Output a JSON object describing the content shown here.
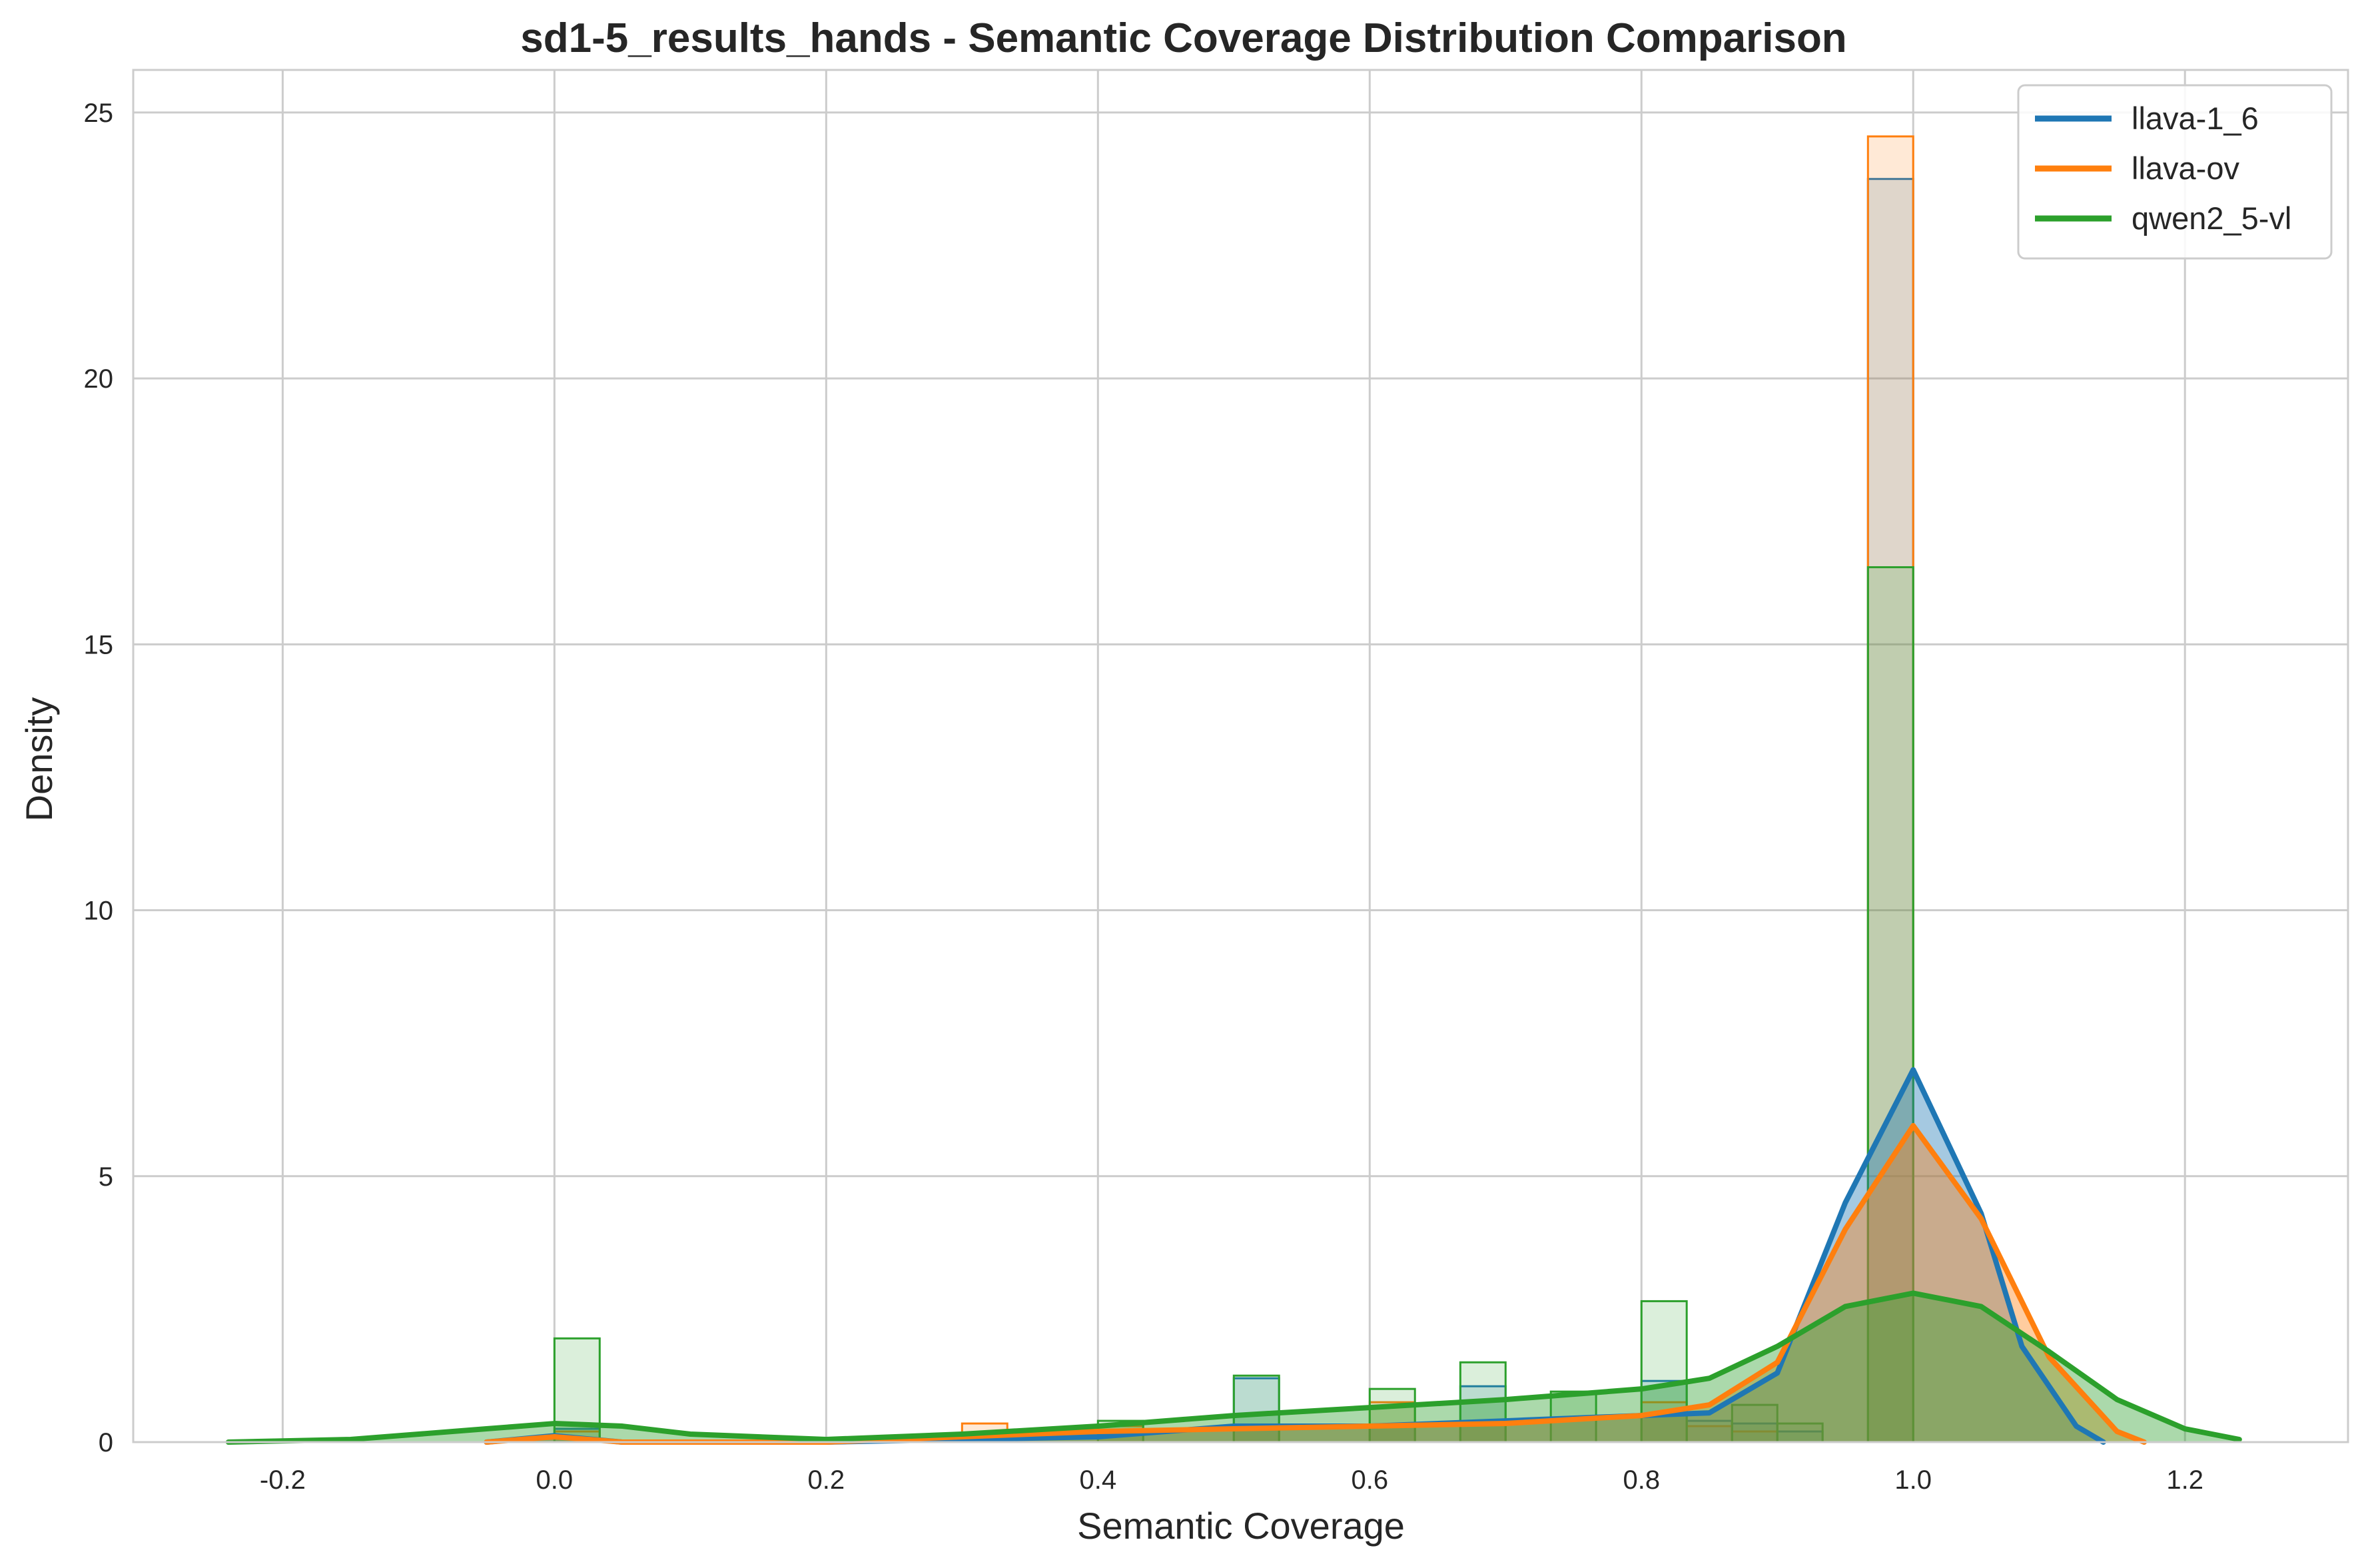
{
  "chart_data": {
    "type": "area",
    "title": "sd1-5_results_hands - Semantic Coverage Distribution Comparison",
    "xlabel": "Semantic Coverage",
    "ylabel": "Density",
    "xlim": [
      -0.31,
      1.32
    ],
    "ylim": [
      0,
      25.8
    ],
    "xticks": [
      -0.2,
      0.0,
      0.2,
      0.4,
      0.6,
      0.8,
      1.0,
      1.2
    ],
    "xtick_labels": [
      "-0.2",
      "0.0",
      "0.2",
      "0.4",
      "0.6",
      "0.8",
      "1.0",
      "1.2"
    ],
    "yticks": [
      0,
      5,
      10,
      15,
      20,
      25
    ],
    "ytick_labels": [
      "0",
      "5",
      "10",
      "15",
      "20",
      "25"
    ],
    "grid": true,
    "legend_position": "top-right",
    "bin_width": 0.0333,
    "series": [
      {
        "name": "llava-1_6",
        "color": "#1f77b4",
        "hist": [
          {
            "x": 0.0,
            "y": 0.25
          },
          {
            "x": 0.5,
            "y": 1.2
          },
          {
            "x": 0.6,
            "y": 0.3
          },
          {
            "x": 0.6667,
            "y": 1.05
          },
          {
            "x": 0.8,
            "y": 1.15
          },
          {
            "x": 0.8333,
            "y": 0.4
          },
          {
            "x": 0.8667,
            "y": 0.35
          },
          {
            "x": 0.9,
            "y": 0.2
          },
          {
            "x": 0.9667,
            "y": 23.75
          }
        ],
        "kde": [
          [
            -0.05,
            0.0
          ],
          [
            0.0,
            0.12
          ],
          [
            0.05,
            0.0
          ],
          [
            0.2,
            0.0
          ],
          [
            0.4,
            0.1
          ],
          [
            0.5,
            0.3
          ],
          [
            0.6,
            0.3
          ],
          [
            0.7,
            0.4
          ],
          [
            0.8,
            0.5
          ],
          [
            0.85,
            0.55
          ],
          [
            0.9,
            1.3
          ],
          [
            0.95,
            4.5
          ],
          [
            1.0,
            7.0
          ],
          [
            1.05,
            4.3
          ],
          [
            1.08,
            1.8
          ],
          [
            1.12,
            0.3
          ],
          [
            1.14,
            0.0
          ]
        ]
      },
      {
        "name": "llava-ov",
        "color": "#ff7f0e",
        "hist": [
          {
            "x": 0.0,
            "y": 0.2
          },
          {
            "x": 0.3,
            "y": 0.35
          },
          {
            "x": 0.4,
            "y": 0.3
          },
          {
            "x": 0.5,
            "y": 0.3
          },
          {
            "x": 0.6,
            "y": 0.75
          },
          {
            "x": 0.6667,
            "y": 0.35
          },
          {
            "x": 0.8,
            "y": 0.75
          },
          {
            "x": 0.8333,
            "y": 0.3
          },
          {
            "x": 0.8667,
            "y": 0.2
          },
          {
            "x": 0.9667,
            "y": 24.55
          }
        ],
        "kde": [
          [
            -0.05,
            0.0
          ],
          [
            0.0,
            0.1
          ],
          [
            0.05,
            0.0
          ],
          [
            0.2,
            0.0
          ],
          [
            0.3,
            0.1
          ],
          [
            0.4,
            0.2
          ],
          [
            0.5,
            0.25
          ],
          [
            0.6,
            0.3
          ],
          [
            0.7,
            0.35
          ],
          [
            0.8,
            0.5
          ],
          [
            0.85,
            0.7
          ],
          [
            0.9,
            1.5
          ],
          [
            0.95,
            4.0
          ],
          [
            1.0,
            5.95
          ],
          [
            1.05,
            4.2
          ],
          [
            1.1,
            1.6
          ],
          [
            1.15,
            0.2
          ],
          [
            1.17,
            0.0
          ]
        ]
      },
      {
        "name": "qwen2_5-vl",
        "color": "#2ca02c",
        "hist": [
          {
            "x": 0.0,
            "y": 1.95
          },
          {
            "x": 0.2333,
            "y": 0.1
          },
          {
            "x": 0.3,
            "y": 0.1
          },
          {
            "x": 0.4,
            "y": 0.4
          },
          {
            "x": 0.5,
            "y": 1.25
          },
          {
            "x": 0.6,
            "y": 1.0
          },
          {
            "x": 0.6667,
            "y": 1.5
          },
          {
            "x": 0.7333,
            "y": 0.95
          },
          {
            "x": 0.8,
            "y": 2.65
          },
          {
            "x": 0.8667,
            "y": 0.7
          },
          {
            "x": 0.9,
            "y": 0.35
          },
          {
            "x": 0.9667,
            "y": 16.45
          }
        ],
        "kde": [
          [
            -0.24,
            0.0
          ],
          [
            -0.15,
            0.05
          ],
          [
            -0.05,
            0.25
          ],
          [
            0.0,
            0.35
          ],
          [
            0.05,
            0.3
          ],
          [
            0.1,
            0.15
          ],
          [
            0.2,
            0.05
          ],
          [
            0.3,
            0.15
          ],
          [
            0.4,
            0.3
          ],
          [
            0.5,
            0.5
          ],
          [
            0.6,
            0.65
          ],
          [
            0.7,
            0.8
          ],
          [
            0.8,
            1.0
          ],
          [
            0.85,
            1.2
          ],
          [
            0.9,
            1.8
          ],
          [
            0.95,
            2.55
          ],
          [
            1.0,
            2.8
          ],
          [
            1.05,
            2.55
          ],
          [
            1.1,
            1.7
          ],
          [
            1.15,
            0.8
          ],
          [
            1.2,
            0.25
          ],
          [
            1.24,
            0.05
          ]
        ]
      }
    ]
  }
}
